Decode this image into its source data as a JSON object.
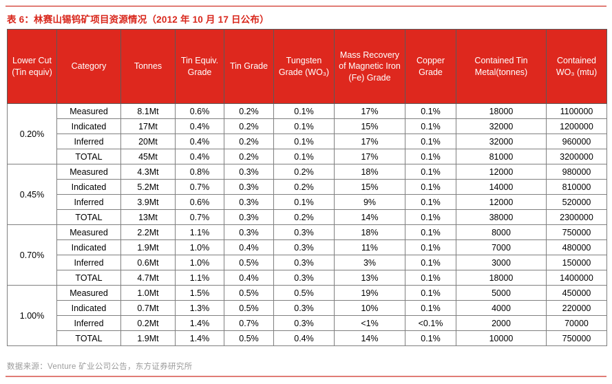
{
  "title": "表 6：林赛山锡钨矿项目资源情况（2012 年 10 月 17 日公布）",
  "source": "数据来源：Venture 矿业公司公告，东方证券研究所",
  "colors": {
    "accent_red": "#DE281E",
    "title_red": "#D8261B",
    "rule_pink": "#E17C75",
    "header_border": "#5A5A5A",
    "body_border": "#7F7F7F",
    "source_gray": "#9B9B9B"
  },
  "table": {
    "headers": [
      "Lower Cut (Tin equiv)",
      "Category",
      "Tonnes",
      "Tin Equiv. Grade",
      "Tin Grade",
      "Tungsten Grade (WO₃)",
      "Mass Recovery of Magnetic Iron  (Fe) Grade",
      "Copper Grade",
      "Contained Tin Metal(tonnes)",
      "Contained WO₃ (mtu)"
    ],
    "groups": [
      {
        "lower_cut": "0.20%",
        "rows": [
          [
            "Measured",
            "8.1Mt",
            "0.6%",
            "0.2%",
            "0.1%",
            "17%",
            "0.1%",
            "18000",
            "1100000"
          ],
          [
            "Indicated",
            "17Mt",
            "0.4%",
            "0.2%",
            "0.1%",
            "15%",
            "0.1%",
            "32000",
            "1200000"
          ],
          [
            "Inferred",
            "20Mt",
            "0.4%",
            "0.2%",
            "0.1%",
            "17%",
            "0.1%",
            "32000",
            "960000"
          ],
          [
            "TOTAL",
            "45Mt",
            "0.4%",
            "0.2%",
            "0.1%",
            "17%",
            "0.1%",
            "81000",
            "3200000"
          ]
        ]
      },
      {
        "lower_cut": "0.45%",
        "rows": [
          [
            "Measured",
            "4.3Mt",
            "0.8%",
            "0.3%",
            "0.2%",
            "18%",
            "0.1%",
            "12000",
            "980000"
          ],
          [
            "Indicated",
            "5.2Mt",
            "0.7%",
            "0.3%",
            "0.2%",
            "15%",
            "0.1%",
            "14000",
            "810000"
          ],
          [
            "Inferred",
            "3.9Mt",
            "0.6%",
            "0.3%",
            "0.1%",
            "9%",
            "0.1%",
            "12000",
            "520000"
          ],
          [
            "TOTAL",
            "13Mt",
            "0.7%",
            "0.3%",
            "0.2%",
            "14%",
            "0.1%",
            "38000",
            "2300000"
          ]
        ]
      },
      {
        "lower_cut": "0.70%",
        "rows": [
          [
            "Measured",
            "2.2Mt",
            "1.1%",
            "0.3%",
            "0.3%",
            "18%",
            "0.1%",
            "8000",
            "750000"
          ],
          [
            "Indicated",
            "1.9Mt",
            "1.0%",
            "0.4%",
            "0.3%",
            "11%",
            "0.1%",
            "7000",
            "480000"
          ],
          [
            "Inferred",
            "0.6Mt",
            "1.0%",
            "0.5%",
            "0.3%",
            "3%",
            "0.1%",
            "3000",
            "150000"
          ],
          [
            "TOTAL",
            "4.7Mt",
            "1.1%",
            "0.4%",
            "0.3%",
            "13%",
            "0.1%",
            "18000",
            "1400000"
          ]
        ]
      },
      {
        "lower_cut": "1.00%",
        "rows": [
          [
            "Measured",
            "1.0Mt",
            "1.5%",
            "0.5%",
            "0.5%",
            "19%",
            "0.1%",
            "5000",
            "450000"
          ],
          [
            "Indicated",
            "0.7Mt",
            "1.3%",
            "0.5%",
            "0.3%",
            "10%",
            "0.1%",
            "4000",
            "220000"
          ],
          [
            "Inferred",
            "0.2Mt",
            "1.4%",
            "0.7%",
            "0.3%",
            "<1%",
            "<0.1%",
            "2000",
            "70000"
          ],
          [
            "TOTAL",
            "1.9Mt",
            "1.4%",
            "0.5%",
            "0.4%",
            "14%",
            "0.1%",
            "10000",
            "750000"
          ]
        ]
      }
    ]
  }
}
